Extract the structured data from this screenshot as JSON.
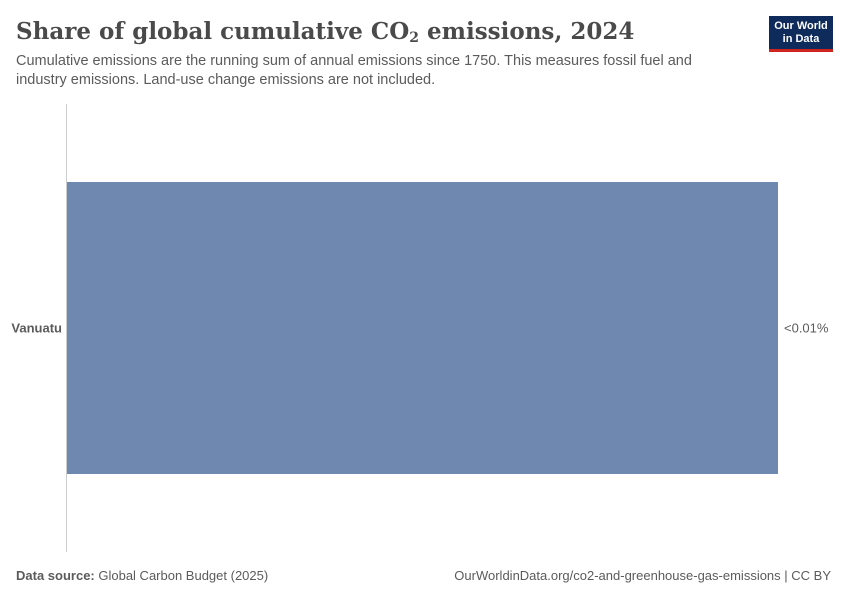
{
  "header": {
    "title_main": "Share of global cumulative CO",
    "title_sub": "2",
    "title_tail": " emissions, 2024",
    "subtitle": "Cumulative emissions are the running sum of annual emissions since 1750. This measures fossil fuel and industry emissions. Land-use change emissions are not included."
  },
  "logo": {
    "line1": "Our World",
    "line2": "in Data"
  },
  "chart_data": {
    "type": "bar",
    "orientation": "horizontal",
    "categories": [
      "Vanuatu"
    ],
    "values": [
      4e-05
    ],
    "value_labels": [
      "<0.01%"
    ],
    "bar_color": "#6f88b0",
    "grid": false,
    "legend": "none"
  },
  "footer": {
    "source_label": "Data source:",
    "source_text": " Global Carbon Budget (2025)",
    "url_text": "OurWorldinData.org/co2-and-greenhouse-gas-emissions | CC BY"
  }
}
